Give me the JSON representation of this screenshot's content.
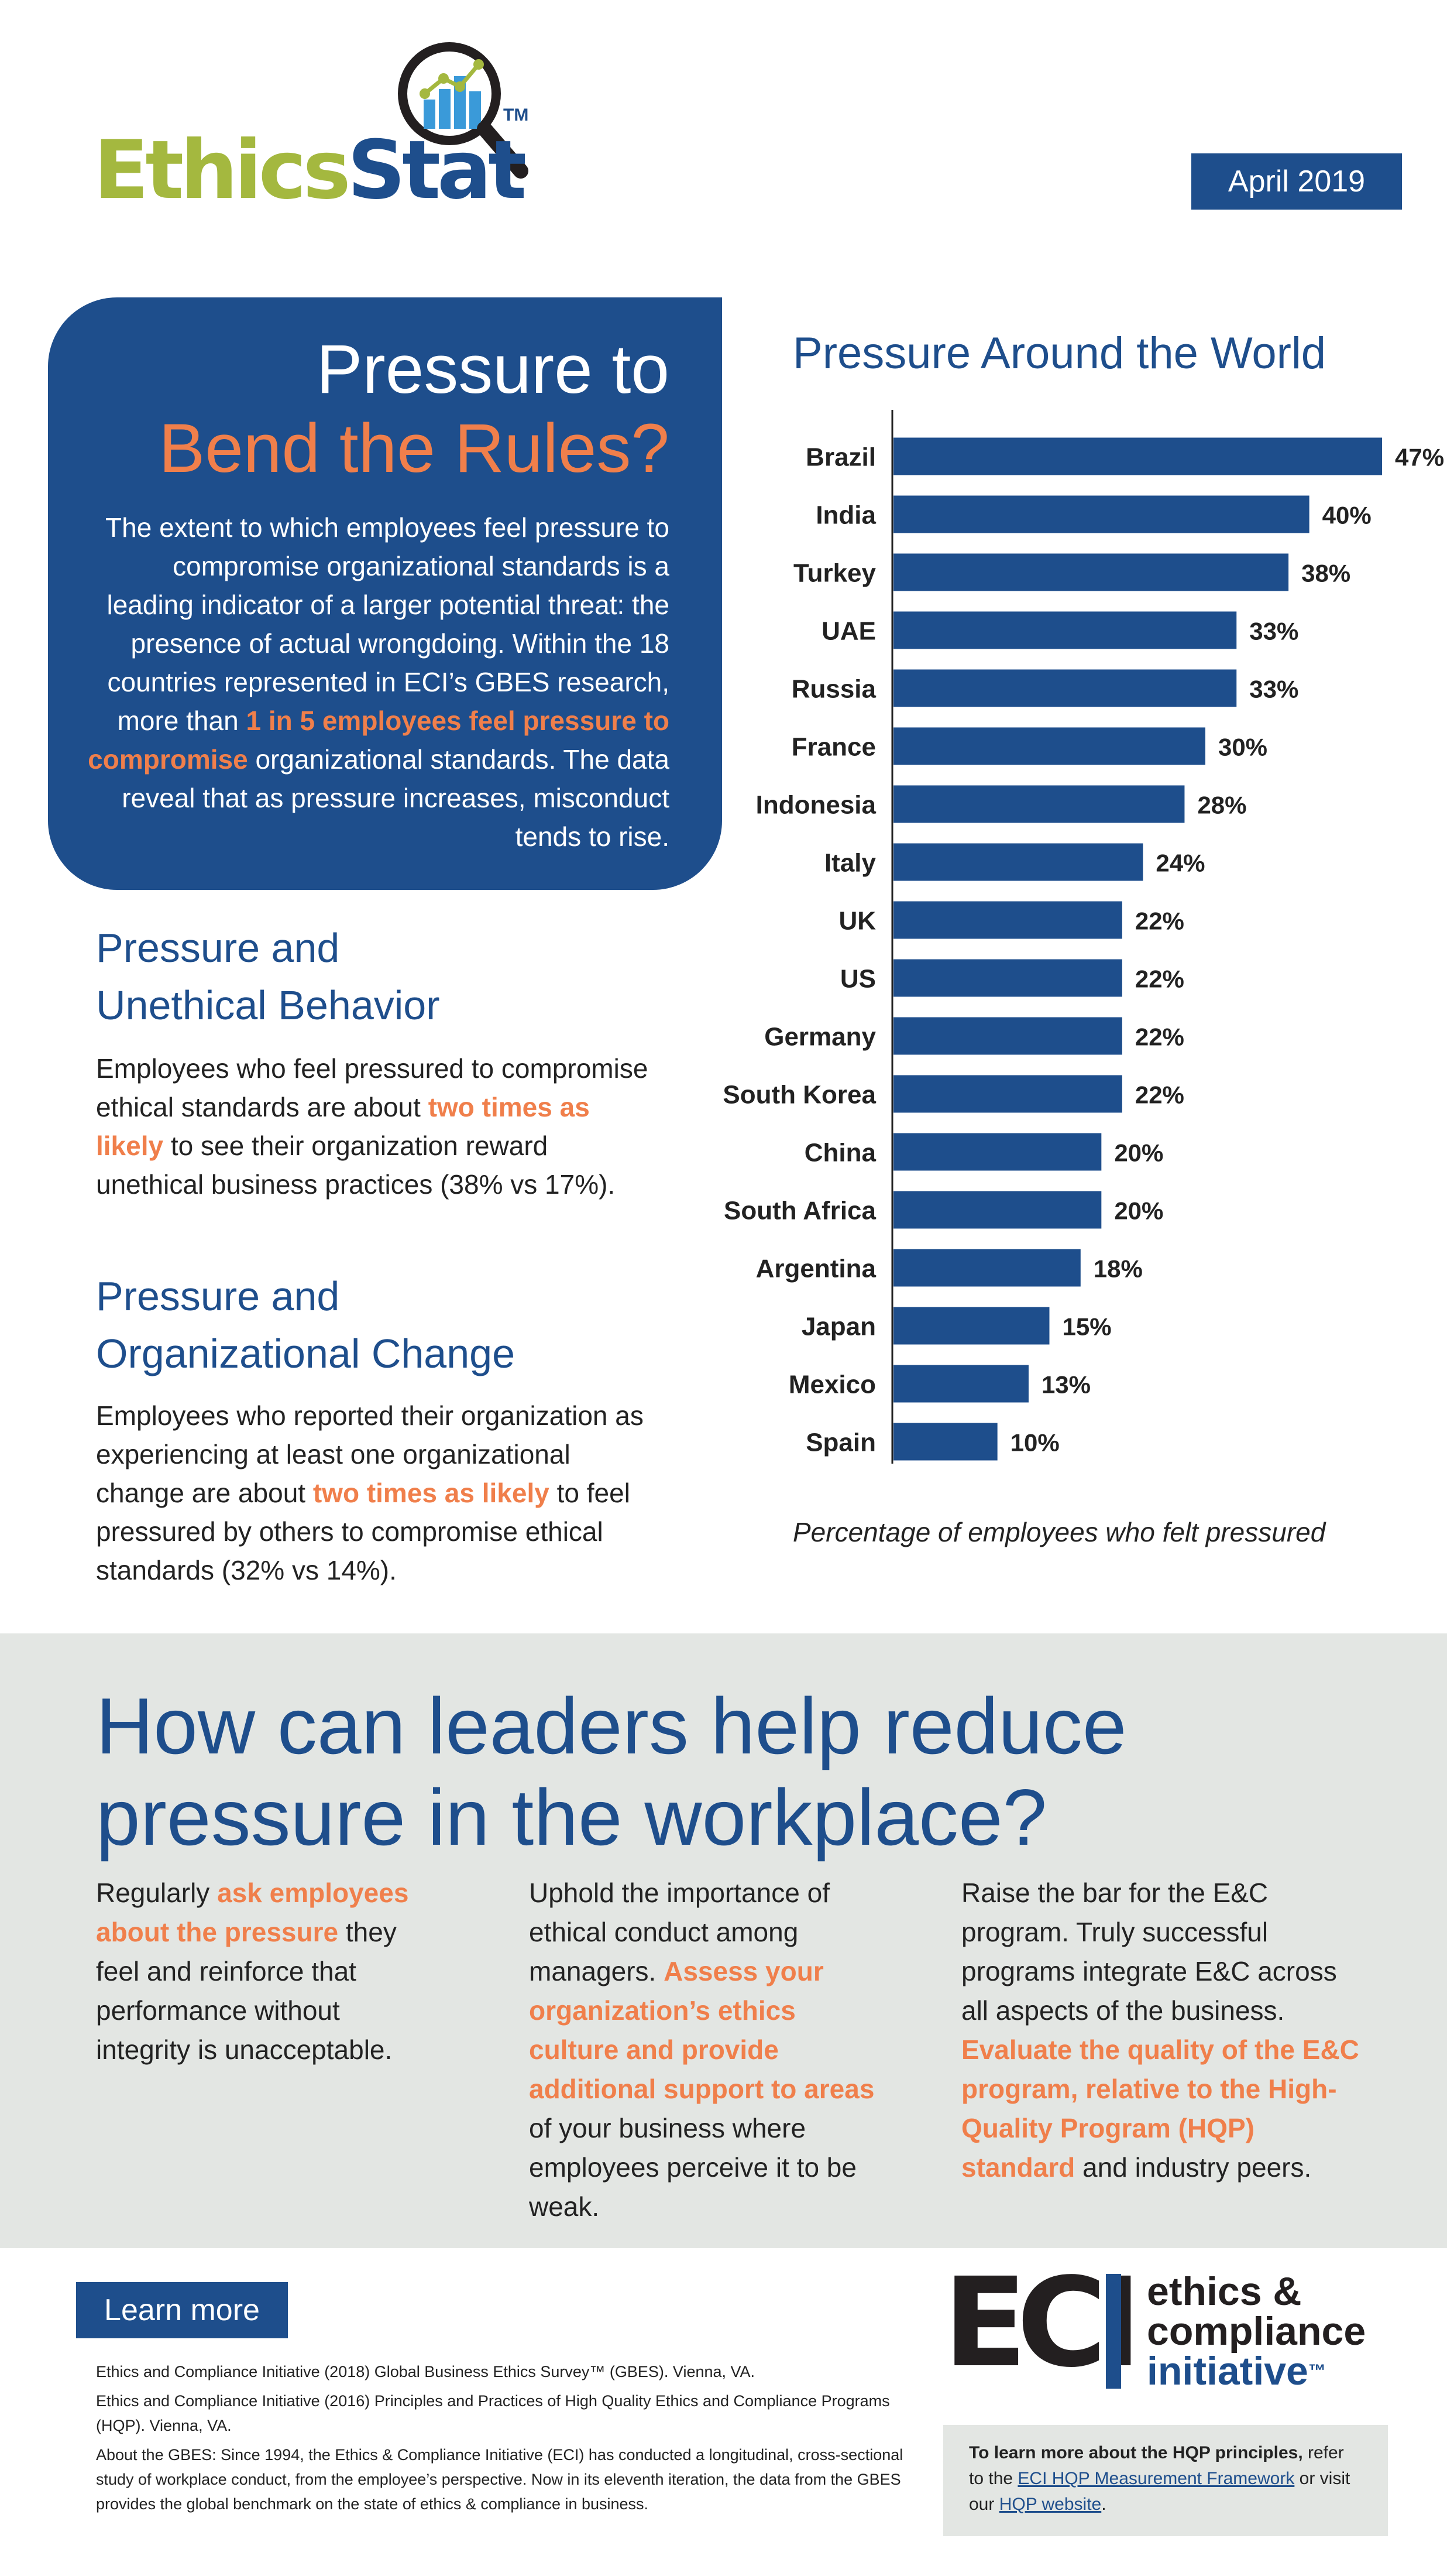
{
  "header": {
    "logo_ethics": "Ethics",
    "logo_stat": "Stat",
    "logo_tm": "TM",
    "date": "April 2019"
  },
  "intro": {
    "title_line1": "Pressure to",
    "title_line2": "Bend the Rules?",
    "body_before": "The extent to which employees feel pressure to compromise organizational standards is a leading indicator of a larger potential threat: the presence of actual wrongdoing. Within the 18 countries represented in ECI’s GBES research, more than ",
    "body_highlight": "1 in 5 employees feel pressure to compromise",
    "body_after": " organizational standards. The data reveal that as pressure increases, misconduct tends to rise."
  },
  "section1": {
    "heading_line1": "Pressure and",
    "heading_line2": "Unethical Behavior",
    "body_before": "Employees who feel pressured to compromise ethical standards are about ",
    "body_highlight": "two times as likely",
    "body_after": " to see their organization reward unethical business practices (38% vs 17%)."
  },
  "section2": {
    "heading_line1": "Pressure and",
    "heading_line2": "Organizational Change",
    "body_before": "Employees who reported their organization as experiencing at least one organizational change are about ",
    "body_highlight": "two times as likely",
    "body_after": " to feel pressured by others to compromise ethical standards (32% vs 14%)."
  },
  "chart_data": {
    "type": "bar",
    "orientation": "horizontal",
    "title": "Pressure Around the World",
    "caption": "Percentage of employees who felt pressured",
    "categories": [
      "Brazil",
      "India",
      "Turkey",
      "UAE",
      "Russia",
      "France",
      "Indonesia",
      "Italy",
      "UK",
      "US",
      "Germany",
      "South Korea",
      "China",
      "South Africa",
      "Argentina",
      "Japan",
      "Mexico",
      "Spain"
    ],
    "values": [
      47,
      40,
      38,
      33,
      33,
      30,
      28,
      24,
      22,
      22,
      22,
      22,
      20,
      20,
      18,
      15,
      13,
      10
    ],
    "value_labels": [
      "47%",
      "40%",
      "38%",
      "33%",
      "33%",
      "30%",
      "28%",
      "24%",
      "22%",
      "22%",
      "22%",
      "22%",
      "20%",
      "20%",
      "18%",
      "15%",
      "13%",
      "10%"
    ],
    "unit": "%",
    "bar_color": "#1e4e8c",
    "xlim": [
      0,
      47
    ],
    "grid": false,
    "legend": "none"
  },
  "leaders": {
    "heading": "How can leaders help reduce pressure in the workplace?",
    "col1": {
      "t1": "Regularly ",
      "h1": "ask employees about the pressure",
      "t2": " they feel and reinforce that performance without integrity is unacceptable."
    },
    "col2": {
      "t1": "Uphold the importance of ethical conduct among managers. ",
      "h1": "Assess your organization’s ethics culture and provide additional support to areas",
      "t2": " of your business where employees perceive it to be weak."
    },
    "col3": {
      "t1": "Raise the bar for the E&C program. Truly successful programs integrate E&C across all aspects of the business. ",
      "h1": "Evaluate the quality of the E&C program, relative to the High-Quality Program (HQP) standard",
      "t2": " and industry peers."
    }
  },
  "footer": {
    "learn_more": "Learn more",
    "ref1": "Ethics and Compliance Initiative (2018) Global Business Ethics Survey™ (GBES). Vienna, VA.",
    "ref2": "Ethics and Compliance Initiative (2016) Principles and Practices of High Quality Ethics and Compliance Programs (HQP). Vienna, VA.",
    "ref3": "About the GBES: Since 1994, the Ethics & Compliance Initiative (ECI) has conducted a longitudinal, cross-sectional study of workplace conduct, from the employee’s perspective. Now in its eleventh iteration, the data from the GBES provides the global benchmark on the state of ethics & compliance in business.",
    "eci_mark": "ECI",
    "eci_line1": "ethics &",
    "eci_line2": "compliance",
    "eci_line3": "initiative",
    "eci_tm": "™",
    "hqp_bold": "To learn more about the HQP principles,",
    "hqp_t1": " refer to the ",
    "hqp_link1": "ECI HQP Measurement Framework",
    "hqp_t2": " or visit our ",
    "hqp_link2": "HQP website",
    "hqp_t3": "."
  },
  "colors": {
    "navy": "#1e4e8c",
    "orange": "#f07f4b",
    "green": "#a4b83f",
    "band_gray": "#e3e6e3"
  }
}
